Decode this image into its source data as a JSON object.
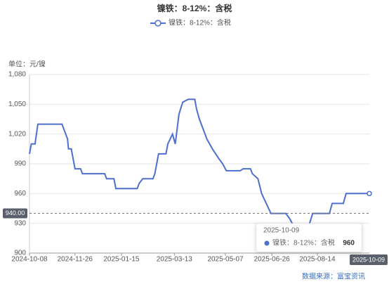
{
  "chart_data": {
    "type": "line",
    "title": "镍铁：8-12%：含税",
    "unit_label": "单位：元/镍",
    "source": "数据来源：富宝资讯",
    "series": [
      {
        "name": "镍铁：8-12%：含税",
        "color": "#4e6fd0",
        "x": [
          "2024-10-08",
          "2024-10-10",
          "2024-10-14",
          "2024-10-17",
          "2024-11-12",
          "2024-11-14",
          "2024-11-18",
          "2024-11-19",
          "2024-11-22",
          "2024-11-26",
          "2024-12-02",
          "2024-12-04",
          "2024-12-28",
          "2024-12-30",
          "2025-01-07",
          "2025-01-09",
          "2025-02-01",
          "2025-02-03",
          "2025-02-07",
          "2025-02-18",
          "2025-02-20",
          "2025-02-24",
          "2025-03-04",
          "2025-03-06",
          "2025-03-11",
          "2025-03-14",
          "2025-03-18",
          "2025-03-22",
          "2025-03-28",
          "2025-04-04",
          "2025-04-06",
          "2025-04-09",
          "2025-04-13",
          "2025-04-17",
          "2025-04-23",
          "2025-04-30",
          "2025-05-04",
          "2025-05-08",
          "2025-05-23",
          "2025-05-26",
          "2025-06-03",
          "2025-06-05",
          "2025-06-11",
          "2025-06-15",
          "2025-06-20",
          "2025-06-25",
          "2025-07-11",
          "2025-07-15",
          "2025-07-18",
          "2025-07-22",
          "2025-08-05",
          "2025-08-09",
          "2025-08-27",
          "2025-08-30",
          "2025-09-11",
          "2025-09-14",
          "2025-10-09"
        ],
        "values": [
          1000,
          1010,
          1010,
          1030,
          1030,
          1025,
          1015,
          1005,
          1005,
          985,
          985,
          980,
          980,
          975,
          975,
          965,
          965,
          970,
          975,
          975,
          980,
          1000,
          1000,
          1010,
          1020,
          1010,
          1040,
          1052,
          1055,
          1055,
          1045,
          1035,
          1025,
          1015,
          1005,
          995,
          990,
          983,
          983,
          985,
          985,
          980,
          975,
          960,
          950,
          940,
          940,
          935,
          930,
          928,
          928,
          940,
          940,
          950,
          950,
          960,
          960
        ]
      }
    ],
    "xlim": [
      "2024-10-08",
      "2025-10-09"
    ],
    "xticks": [
      "2024-10-08",
      "2024-11-26",
      "2025-01-15",
      "2025-03-13",
      "2025-05-07",
      "2025-06-26",
      "2025-08-14"
    ],
    "crosshair_x": "2025-10-09",
    "crosshair_y": {
      "value": 940,
      "label": "940.00"
    },
    "ylim": [
      900,
      1080
    ],
    "yticks": [
      900,
      930,
      960,
      990,
      {
        "value": 1020,
        "label": "1,020"
      },
      {
        "value": 1050,
        "label": "1,050"
      },
      {
        "value": 1080,
        "label": "1,080"
      }
    ],
    "grid": true
  }
}
